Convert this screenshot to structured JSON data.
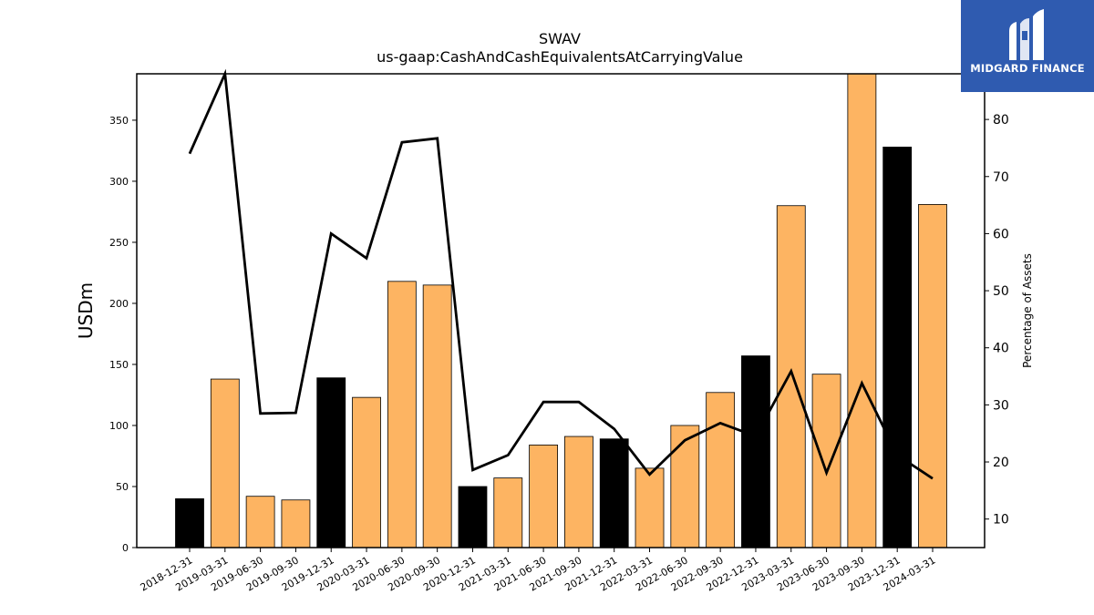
{
  "brand": {
    "name": "MIDGARD FINANCE",
    "color": "#2f5bb0",
    "icon": "midgard-m-logo-icon"
  },
  "chart_data": {
    "type": "bar",
    "title": "SWAV",
    "subtitle": "us-gaap:CashAndCashEquivalentsAtCarryingValue",
    "ylabel": "USDm",
    "ylabel_right": "Percentage of Assets",
    "ylim": [
      0,
      388
    ],
    "ylim_right": [
      5,
      88
    ],
    "yticks": [
      0,
      50,
      100,
      150,
      200,
      250,
      300,
      350
    ],
    "yticks_right": [
      10,
      20,
      30,
      40,
      50,
      60,
      70,
      80
    ],
    "grid": false,
    "colors": {
      "annual": "#000000",
      "quarterly": "#fdb462",
      "line": "#000000"
    },
    "categories": [
      "2018-12-31",
      "2019-03-31",
      "2019-06-30",
      "2019-09-30",
      "2019-12-31",
      "2020-03-31",
      "2020-06-30",
      "2020-09-30",
      "2020-12-31",
      "2021-03-31",
      "2021-06-30",
      "2021-09-30",
      "2021-12-31",
      "2022-03-31",
      "2022-06-30",
      "2022-09-30",
      "2022-12-31",
      "2023-03-31",
      "2023-06-30",
      "2023-09-30",
      "2023-12-31",
      "2024-03-31"
    ],
    "series": [
      {
        "type": "bar",
        "values": [
          40,
          138,
          42,
          39,
          139,
          123,
          218,
          215,
          50,
          57,
          84,
          91,
          89,
          65,
          100,
          127,
          157,
          280,
          142,
          388,
          328,
          281
        ],
        "fiscal_year_end": [
          true,
          false,
          false,
          false,
          true,
          false,
          false,
          false,
          true,
          false,
          false,
          false,
          true,
          false,
          false,
          false,
          true,
          false,
          false,
          false,
          true,
          false
        ]
      },
      {
        "type": "line",
        "axis": "right",
        "values": [
          74,
          88,
          28.5,
          28.6,
          60,
          55.7,
          76,
          76.7,
          18.6,
          21.2,
          30.5,
          30.5,
          25.8,
          17.8,
          23.8,
          26.8,
          24.5,
          35.9,
          18.1,
          33.8,
          21.2,
          17.1
        ]
      }
    ]
  }
}
